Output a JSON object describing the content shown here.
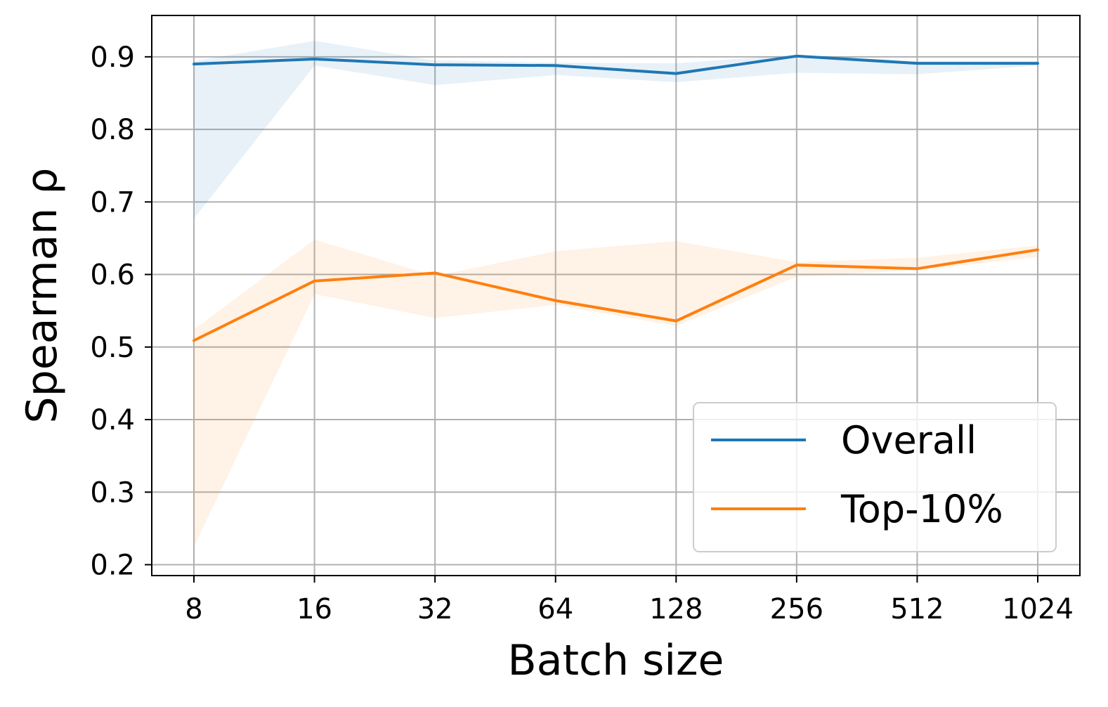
{
  "chart_data": {
    "type": "line",
    "title": "",
    "xlabel": "Batch size",
    "ylabel": "Spearman ρ",
    "categories": [
      "8",
      "16",
      "32",
      "64",
      "128",
      "256",
      "512",
      "1024"
    ],
    "yticks": [
      "0.2",
      "0.3",
      "0.4",
      "0.5",
      "0.6",
      "0.7",
      "0.8",
      "0.9"
    ],
    "ylim": [
      0.185,
      0.957
    ],
    "grid": true,
    "legend_position": "lower-right",
    "series": [
      {
        "name": "Overall",
        "color": "#1f77b4",
        "values": [
          0.89,
          0.897,
          0.889,
          0.888,
          0.877,
          0.901,
          0.891,
          0.891
        ],
        "band_lower": [
          0.677,
          0.888,
          0.861,
          0.875,
          0.865,
          0.878,
          0.876,
          0.888
        ],
        "band_upper": [
          0.894,
          0.922,
          0.895,
          0.892,
          0.891,
          0.903,
          0.894,
          0.894
        ]
      },
      {
        "name": "Top-10%",
        "color": "#ff7f0e",
        "values": [
          0.509,
          0.591,
          0.602,
          0.564,
          0.536,
          0.613,
          0.608,
          0.634
        ],
        "band_lower": [
          0.225,
          0.573,
          0.54,
          0.558,
          0.529,
          0.597,
          0.606,
          0.624
        ],
        "band_upper": [
          0.524,
          0.648,
          0.598,
          0.632,
          0.646,
          0.617,
          0.623,
          0.64
        ]
      }
    ]
  }
}
